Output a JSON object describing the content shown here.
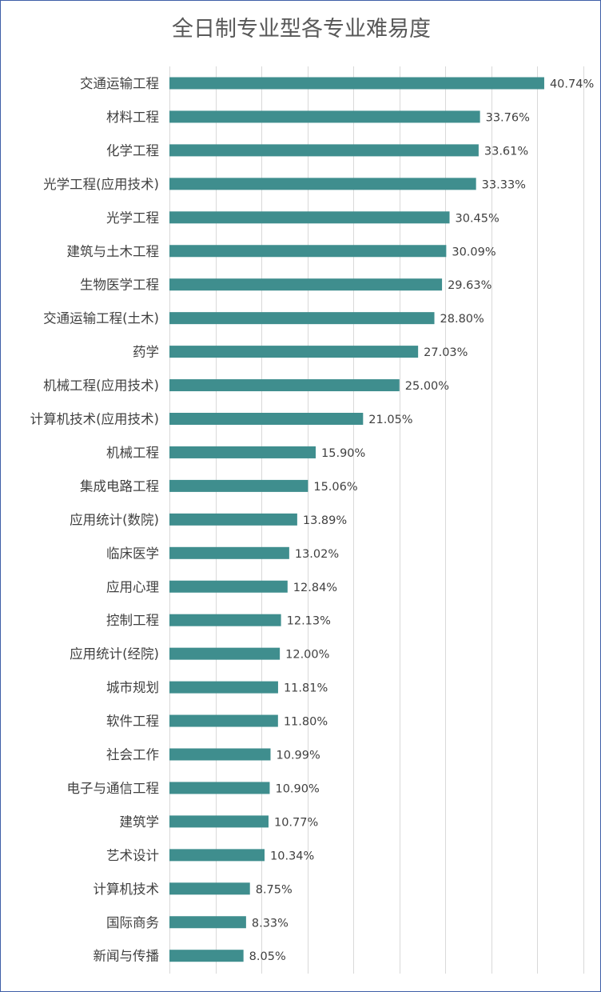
{
  "chart_data": {
    "type": "bar",
    "orientation": "horizontal",
    "title": "全日制专业型各专业难易度",
    "categories": [
      "交通运输工程",
      "材料工程",
      "化学工程",
      "光学工程(应用技术)",
      "光学工程",
      "建筑与土木工程",
      "生物医学工程",
      "交通运输工程(土木)",
      "药学",
      "机械工程(应用技术)",
      "计算机技术(应用技术)",
      "机械工程",
      "集成电路工程",
      "应用统计(数院)",
      "临床医学",
      "应用心理",
      "控制工程",
      "应用统计(经院)",
      "城市规划",
      "软件工程",
      "社会工作",
      "电子与通信工程",
      "建筑学",
      "艺术设计",
      "计算机技术",
      "国际商务",
      "新闻与传播"
    ],
    "values": [
      40.74,
      33.76,
      33.61,
      33.33,
      30.45,
      30.09,
      29.63,
      28.8,
      27.03,
      25.0,
      21.05,
      15.9,
      15.06,
      13.89,
      13.02,
      12.84,
      12.13,
      12.0,
      11.81,
      11.8,
      10.99,
      10.9,
      10.77,
      10.34,
      8.75,
      8.33,
      8.05
    ],
    "value_labels": [
      "40.74%",
      "33.76%",
      "33.61%",
      "33.33%",
      "30.45%",
      "30.09%",
      "29.63%",
      "28.80%",
      "27.03%",
      "25.00%",
      "21.05%",
      "15.90%",
      "15.06%",
      "13.89%",
      "13.02%",
      "12.84%",
      "12.13%",
      "12.00%",
      "11.81%",
      "11.80%",
      "10.99%",
      "10.90%",
      "10.77%",
      "10.34%",
      "8.75%",
      "8.33%",
      "8.05%"
    ],
    "unit": "%",
    "xlim": [
      0,
      45
    ],
    "grid": true,
    "x_grid_step": 5,
    "bar_color": "#3f8e8e",
    "legend": "none"
  }
}
